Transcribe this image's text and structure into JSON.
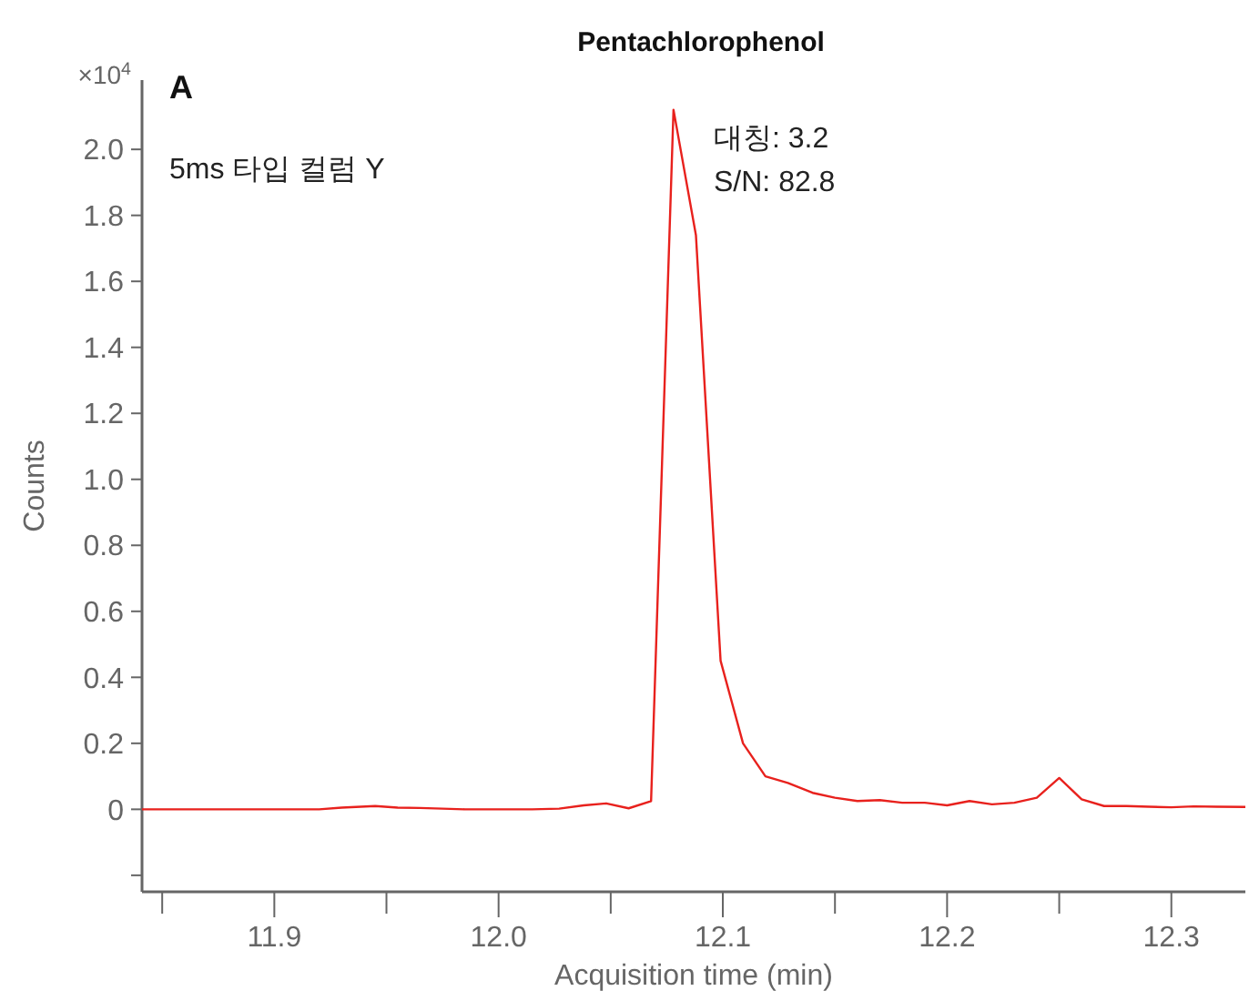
{
  "chart_data": {
    "type": "line",
    "title": "Pentachlorophenol",
    "xlabel": "Acquisition time (min)",
    "ylabel": "Counts",
    "annotations": [
      "×10$^{4}$",
      "A",
      "5ms 타입 컬럼 Y",
      "대칭: 3.2",
      "S/N: 82.8"
    ],
    "x": [
      11.841,
      11.85,
      11.86,
      11.87,
      11.88,
      11.89,
      11.9,
      11.91,
      11.92,
      11.93,
      11.945,
      11.955,
      11.965,
      11.975,
      11.985,
      11.995,
      12.005,
      12.015,
      12.027,
      12.038,
      12.048,
      12.058,
      12.068,
      12.078,
      12.088,
      12.099,
      12.109,
      12.119,
      12.129,
      12.14,
      12.15,
      12.16,
      12.17,
      12.18,
      12.19,
      12.2,
      12.21,
      12.22,
      12.23,
      12.24,
      12.25,
      12.26,
      12.27,
      12.28,
      12.29,
      12.3,
      12.31,
      12.32,
      12.333
    ],
    "series": [
      {
        "color": "#e8211d",
        "values": [
          0,
          0,
          0,
          0,
          0,
          0,
          0,
          0,
          0,
          0.005,
          0.01,
          0.005,
          0.004,
          0.002,
          0,
          0,
          0,
          0,
          0.002,
          0.012,
          0.018,
          0.003,
          0.025,
          2.12,
          1.74,
          0.45,
          0.2,
          0.1,
          0.08,
          0.05,
          0.035,
          0.025,
          0.028,
          0.02,
          0.02,
          0.012,
          0.025,
          0.015,
          0.02,
          0.035,
          0.095,
          0.03,
          0.01,
          0.01,
          0.008,
          0.006,
          0.009,
          0.008,
          0.007
        ]
      }
    ],
    "xlim": [
      11.841,
      12.333
    ],
    "ylim": [
      -0.25,
      2.21
    ],
    "xticks": [
      {
        "value": 11.85,
        "label": null
      },
      11.9,
      {
        "value": 11.95,
        "label": null
      },
      {
        "value": 12.0,
        "label": "12.0"
      },
      {
        "value": 12.05,
        "label": null
      },
      12.1,
      {
        "value": 12.15,
        "label": null
      },
      12.2,
      {
        "value": 12.25,
        "label": null
      },
      12.3
    ],
    "yticks": [
      {
        "value": -0.2,
        "label": null
      },
      0,
      0.2,
      0.4,
      0.6,
      0.8,
      {
        "value": 1.0,
        "label": "1.0"
      },
      1.2,
      1.4,
      1.6,
      1.8,
      {
        "value": 2.0,
        "label": "2.0"
      }
    ],
    "grid": false,
    "marker": "none",
    "line_style": "solid"
  }
}
